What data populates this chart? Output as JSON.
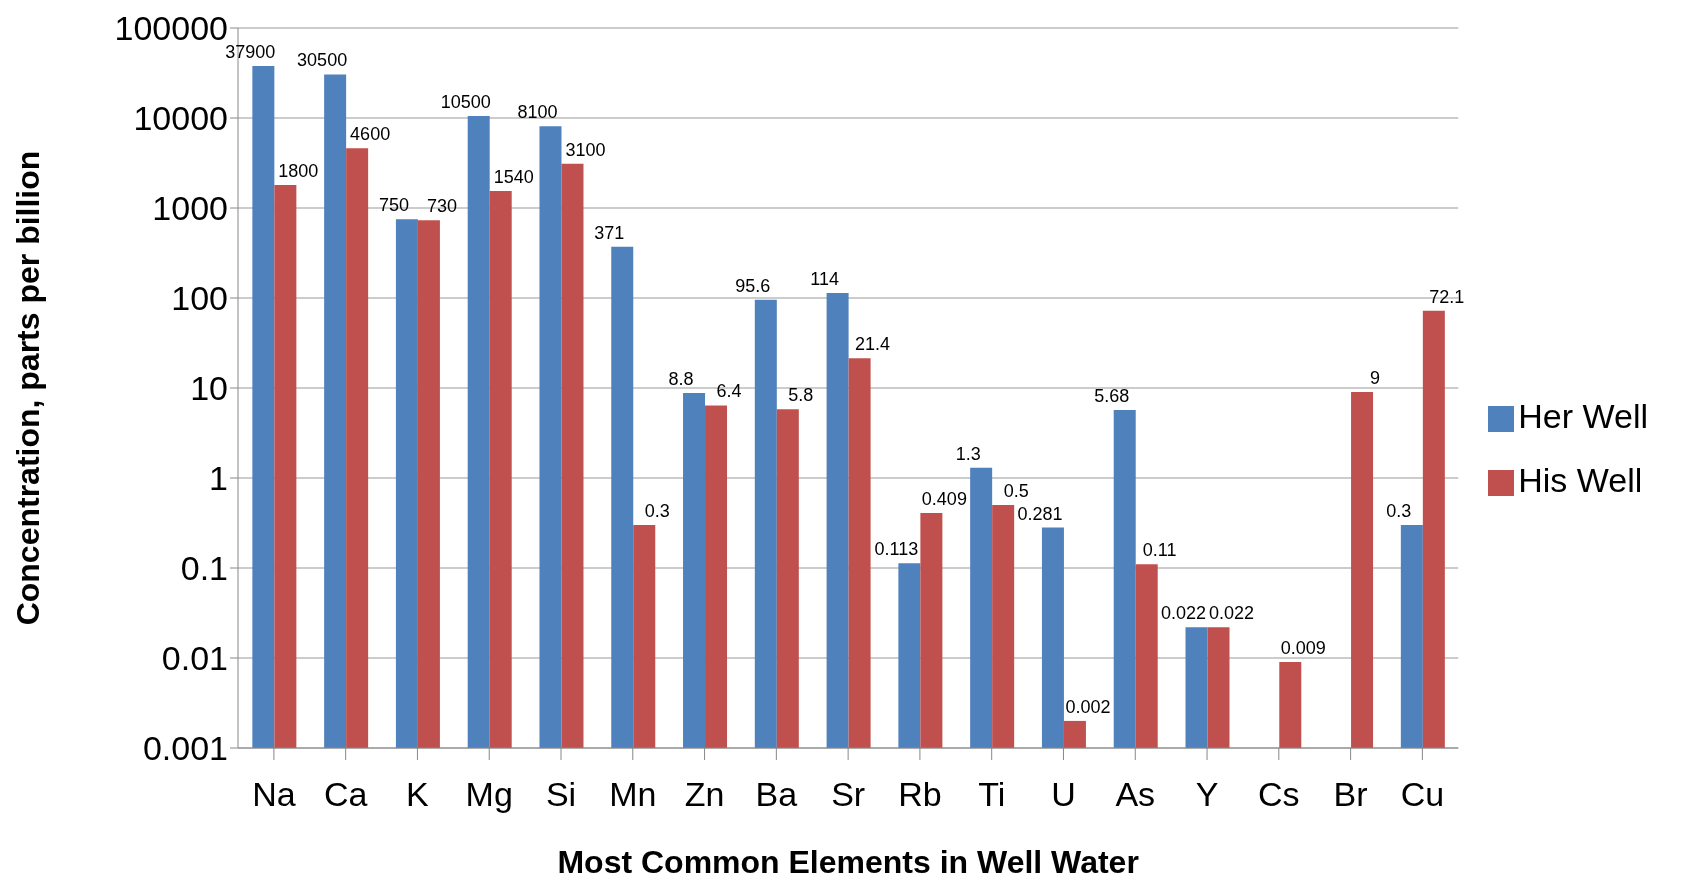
{
  "chart_data": {
    "type": "bar",
    "xlabel": "Most Common Elements in Well Water",
    "ylabel": "Concentration, parts per billion",
    "categories": [
      "Na",
      "Ca",
      "K",
      "Mg",
      "Si",
      "Mn",
      "Zn",
      "Ba",
      "Sr",
      "Rb",
      "Ti",
      "U",
      "As",
      "Y",
      "Cs",
      "Br",
      "Cu"
    ],
    "series": [
      {
        "name": "Her Well",
        "color": "#4f81bd",
        "values": [
          37900,
          30500,
          750,
          10500,
          8100,
          371,
          8.8,
          95.6,
          114,
          0.113,
          1.3,
          0.281,
          5.68,
          0.022,
          null,
          null,
          0.3
        ]
      },
      {
        "name": "His Well",
        "color": "#c0504d",
        "values": [
          1800,
          4600,
          730,
          1540,
          3100,
          0.3,
          6.4,
          5.8,
          21.4,
          0.409,
          0.5,
          0.002,
          0.11,
          0.022,
          0.009,
          9,
          72.1
        ]
      }
    ],
    "log": "y",
    "ylim": [
      0.001,
      100000
    ],
    "yticks": [
      0.001,
      0.01,
      0.1,
      1,
      10,
      100,
      1000,
      10000,
      100000
    ],
    "grid": "y",
    "legend": "right",
    "data_labels": true
  }
}
